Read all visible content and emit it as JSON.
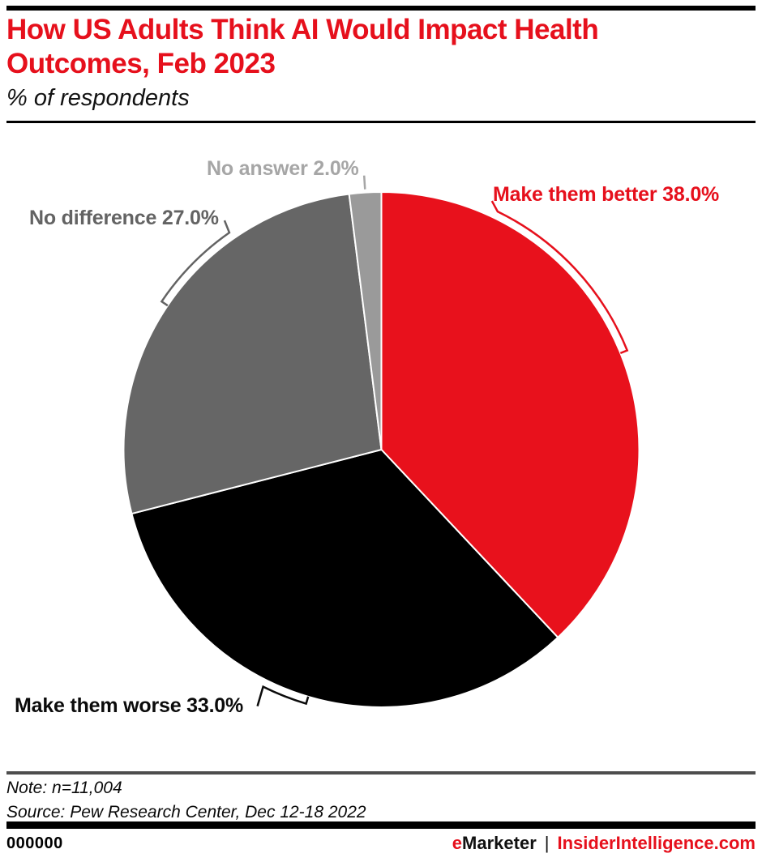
{
  "header": {
    "title_line1": "How US Adults Think AI Would Impact Health",
    "title_line2": "Outcomes, Feb 2023",
    "subtitle": "% of respondents"
  },
  "chart_data": {
    "type": "pie",
    "title": "How US Adults Think AI Would Impact Health Outcomes, Feb 2023",
    "unit": "% of respondents",
    "start_angle_deg": 0,
    "direction": "clockwise",
    "total": 100,
    "slices": [
      {
        "label": "Make them better",
        "value": 38.0,
        "display": "Make them better 38.0%",
        "color": "#e8111c",
        "label_color": "#e6101c"
      },
      {
        "label": "Make them worse",
        "value": 33.0,
        "display": "Make them worse 33.0%",
        "color": "#000000",
        "label_color": "#0b0b0b"
      },
      {
        "label": "No difference",
        "value": 27.0,
        "display": "No difference 27.0%",
        "color": "#666666",
        "label_color": "#636363"
      },
      {
        "label": "No answer",
        "value": 2.0,
        "display": "No answer 2.0%",
        "color": "#9a9a9a",
        "label_color": "#a6a6a6"
      }
    ]
  },
  "footnote": {
    "note": "Note: n=11,004",
    "source": "Source: Pew Research Center, Dec 12-18 2022"
  },
  "footer": {
    "code": "000000",
    "brand_e": "e",
    "brand_rest": "Marketer",
    "separator": "|",
    "brand2": "InsiderIntelligence.com"
  }
}
